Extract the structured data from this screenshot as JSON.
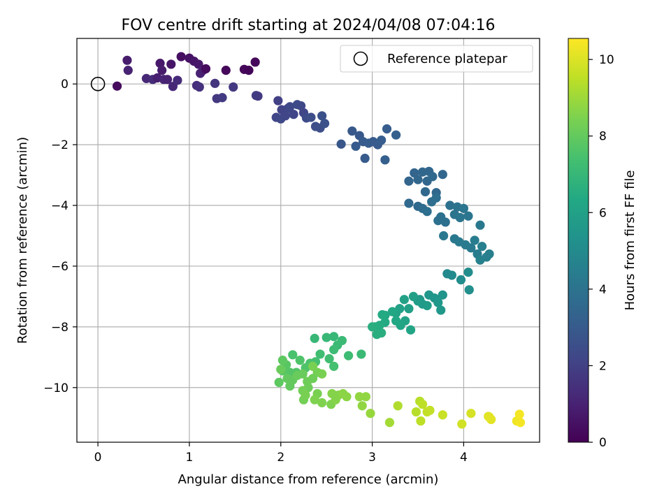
{
  "chart_data": {
    "type": "scatter",
    "title": "FOV centre drift starting at 2024/04/08 07:04:16",
    "xlabel": "Angular distance from reference (arcmin)",
    "ylabel": "Rotation from reference (arcmin)",
    "xlim": [
      -0.23,
      4.83
    ],
    "ylim": [
      -11.8,
      1.5
    ],
    "xticks": [
      0,
      1,
      2,
      3,
      4
    ],
    "yticks": [
      -10,
      -8,
      -6,
      -4,
      -2,
      0
    ],
    "grid": true,
    "legend": {
      "position": "top-right",
      "entries": [
        "Reference platepar"
      ]
    },
    "reference": {
      "x": 0,
      "y": 0
    },
    "colorbar": {
      "label": "Hours from first FF file",
      "range": [
        0,
        10.55
      ],
      "ticks": [
        0,
        2,
        4,
        6,
        8,
        10
      ],
      "colormap": "viridis"
    },
    "series": [
      {
        "points": [
          [
            0.21,
            -0.07,
            0.3
          ],
          [
            0.32,
            0.78,
            0.8
          ],
          [
            0.33,
            0.45,
            1.0
          ],
          [
            0.53,
            0.18,
            1.2
          ],
          [
            0.6,
            0.15,
            1.3
          ],
          [
            0.65,
            0.2,
            0.9
          ],
          [
            0.68,
            0.68,
            0.7
          ],
          [
            0.7,
            0.45,
            0.8
          ],
          [
            0.72,
            0.15,
            1.1
          ],
          [
            0.76,
            0.15,
            1.0
          ],
          [
            0.8,
            0.65,
            0.6
          ],
          [
            0.82,
            -0.08,
            1.2
          ],
          [
            0.87,
            0.12,
            1.3
          ],
          [
            0.91,
            0.9,
            0.4
          ],
          [
            1.0,
            0.85,
            0.5
          ],
          [
            1.05,
            0.75,
            0.6
          ],
          [
            1.1,
            0.65,
            0.7
          ],
          [
            1.12,
            0.35,
            1.0
          ],
          [
            1.15,
            0.45,
            0.9
          ],
          [
            1.08,
            -0.05,
            1.4
          ],
          [
            1.11,
            -0.1,
            1.5
          ],
          [
            1.18,
            0.5,
            0.3
          ],
          [
            1.28,
            0.02,
            1.6
          ],
          [
            1.3,
            -0.48,
            1.7
          ],
          [
            1.36,
            -0.45,
            1.8
          ],
          [
            1.4,
            0.45,
            0.2
          ],
          [
            1.48,
            -0.1,
            1.7
          ],
          [
            1.6,
            0.48,
            0.2
          ],
          [
            1.65,
            0.45,
            0.1
          ],
          [
            1.72,
            0.72,
            0.2
          ],
          [
            1.73,
            -0.38,
            1.9
          ],
          [
            1.75,
            -0.4,
            1.8
          ],
          [
            1.97,
            -0.55,
            2.0
          ],
          [
            1.95,
            -1.1,
            2.2
          ],
          [
            2.0,
            -1.15,
            2.3
          ],
          [
            2.01,
            -0.85,
            2.1
          ],
          [
            2.05,
            -1.05,
            2.2
          ],
          [
            2.08,
            -0.8,
            2.2
          ],
          [
            2.1,
            -0.75,
            2.3
          ],
          [
            2.14,
            -1.0,
            2.2
          ],
          [
            2.18,
            -0.68,
            2.4
          ],
          [
            2.22,
            -0.72,
            2.3
          ],
          [
            2.25,
            -0.95,
            2.2
          ],
          [
            2.28,
            -1.12,
            2.4
          ],
          [
            2.33,
            -1.1,
            2.5
          ],
          [
            2.38,
            -1.4,
            2.5
          ],
          [
            2.43,
            -1.45,
            2.5
          ],
          [
            2.45,
            -1.05,
            2.6
          ],
          [
            2.48,
            -1.3,
            2.6
          ],
          [
            2.66,
            -1.98,
            2.8
          ],
          [
            2.78,
            -1.55,
            2.9
          ],
          [
            2.82,
            -2.05,
            3.0
          ],
          [
            2.86,
            -1.7,
            2.9
          ],
          [
            2.9,
            -1.9,
            3.0
          ],
          [
            2.92,
            -2.45,
            3.0
          ],
          [
            2.96,
            -1.95,
            3.1
          ],
          [
            3.01,
            -1.9,
            3.0
          ],
          [
            3.06,
            -2.0,
            3.0
          ],
          [
            3.1,
            -1.85,
            3.1
          ],
          [
            3.14,
            -2.5,
            3.2
          ],
          [
            3.16,
            -1.48,
            3.1
          ],
          [
            3.26,
            -1.68,
            3.2
          ],
          [
            3.4,
            -3.2,
            3.4
          ],
          [
            3.46,
            -2.93,
            3.4
          ],
          [
            3.5,
            -3.15,
            3.5
          ],
          [
            3.55,
            -2.9,
            3.5
          ],
          [
            3.58,
            -3.55,
            3.6
          ],
          [
            3.6,
            -3.2,
            3.5
          ],
          [
            3.62,
            -2.88,
            3.5
          ],
          [
            3.66,
            -3.05,
            3.6
          ],
          [
            3.7,
            -3.58,
            3.5
          ],
          [
            3.77,
            -2.98,
            3.5
          ],
          [
            3.4,
            -3.93,
            3.6
          ],
          [
            3.5,
            -4.03,
            3.6
          ],
          [
            3.55,
            -4.1,
            3.7
          ],
          [
            3.6,
            -4.2,
            3.8
          ],
          [
            3.65,
            -3.88,
            3.8
          ],
          [
            3.7,
            -3.75,
            3.8
          ],
          [
            3.72,
            -4.5,
            3.9
          ],
          [
            3.75,
            -4.38,
            3.9
          ],
          [
            3.8,
            -4.55,
            3.9
          ],
          [
            3.85,
            -4.0,
            3.9
          ],
          [
            3.9,
            -4.3,
            4.0
          ],
          [
            3.93,
            -4.05,
            4.0
          ],
          [
            3.96,
            -4.4,
            4.1
          ],
          [
            4.0,
            -4.1,
            4.1
          ],
          [
            4.05,
            -4.35,
            4.1
          ],
          [
            3.78,
            -5.0,
            4.2
          ],
          [
            3.9,
            -5.1,
            4.2
          ],
          [
            3.95,
            -5.2,
            4.3
          ],
          [
            4.02,
            -5.3,
            4.3
          ],
          [
            4.08,
            -5.4,
            4.3
          ],
          [
            4.12,
            -5.15,
            4.4
          ],
          [
            4.15,
            -5.6,
            4.4
          ],
          [
            4.2,
            -5.35,
            4.5
          ],
          [
            4.25,
            -5.7,
            4.5
          ],
          [
            4.28,
            -5.6,
            4.5
          ],
          [
            4.18,
            -5.8,
            4.6
          ],
          [
            4.18,
            -4.65,
            4.2
          ],
          [
            3.82,
            -6.25,
            5.0
          ],
          [
            3.87,
            -6.3,
            5.0
          ],
          [
            3.97,
            -6.45,
            5.1
          ],
          [
            4.05,
            -6.2,
            5.1
          ],
          [
            4.06,
            -6.78,
            5.2
          ],
          [
            3.62,
            -6.95,
            5.5
          ],
          [
            3.68,
            -7.05,
            5.5
          ],
          [
            3.72,
            -7.2,
            5.6
          ],
          [
            3.75,
            -7.45,
            5.6
          ],
          [
            3.52,
            -7.1,
            5.6
          ],
          [
            3.55,
            -7.25,
            5.7
          ],
          [
            3.5,
            -7.15,
            5.8
          ],
          [
            3.45,
            -7.0,
            5.9
          ],
          [
            3.4,
            -7.4,
            5.9
          ],
          [
            3.35,
            -7.1,
            6.0
          ],
          [
            3.3,
            -7.4,
            6.0
          ],
          [
            3.26,
            -7.55,
            6.1
          ],
          [
            3.36,
            -7.8,
            6.1
          ],
          [
            3.42,
            -8.1,
            6.2
          ],
          [
            3.31,
            -7.95,
            6.2
          ],
          [
            3.26,
            -7.8,
            6.3
          ],
          [
            3.22,
            -7.5,
            6.3
          ],
          [
            3.14,
            -7.62,
            6.3
          ],
          [
            3.11,
            -7.6,
            6.4
          ],
          [
            3.14,
            -7.85,
            6.4
          ],
          [
            3.08,
            -7.95,
            6.5
          ],
          [
            3.03,
            -8.0,
            6.5
          ],
          [
            3.05,
            -8.25,
            6.6
          ],
          [
            3.1,
            -8.2,
            6.6
          ],
          [
            3.0,
            -8.0,
            6.6
          ],
          [
            3.77,
            -6.95,
            5.4
          ],
          [
            3.6,
            -7.3,
            5.8
          ],
          [
            2.58,
            -8.32,
            7.0
          ],
          [
            2.5,
            -8.35,
            7.0
          ],
          [
            2.62,
            -8.6,
            7.1
          ],
          [
            2.67,
            -8.45,
            7.1
          ],
          [
            2.74,
            -8.95,
            7.2
          ],
          [
            2.58,
            -8.75,
            7.2
          ],
          [
            2.53,
            -9.05,
            7.3
          ],
          [
            2.43,
            -8.9,
            7.3
          ],
          [
            2.38,
            -9.15,
            7.4
          ],
          [
            2.32,
            -9.2,
            7.5
          ],
          [
            2.27,
            -9.35,
            7.6
          ],
          [
            2.21,
            -9.1,
            7.6
          ],
          [
            2.17,
            -9.5,
            7.7
          ],
          [
            2.1,
            -9.5,
            7.7
          ],
          [
            2.06,
            -9.25,
            7.8
          ],
          [
            2.02,
            -9.1,
            7.9
          ],
          [
            2.02,
            -9.45,
            7.8
          ],
          [
            2.07,
            -9.7,
            8.0
          ],
          [
            2.13,
            -9.75,
            8.0
          ],
          [
            2.18,
            -9.6,
            8.1
          ],
          [
            2.24,
            -9.55,
            8.1
          ],
          [
            2.29,
            -9.8,
            8.2
          ],
          [
            2.35,
            -9.7,
            8.2
          ],
          [
            2.3,
            -10.0,
            8.2
          ],
          [
            2.24,
            -10.1,
            8.3
          ],
          [
            2.4,
            -9.5,
            8.3
          ],
          [
            2.45,
            -9.55,
            8.4
          ],
          [
            2.35,
            -9.3,
            8.4
          ],
          [
            2.58,
            -9.3,
            7.4
          ],
          [
            2.88,
            -8.9,
            7.1
          ],
          [
            2.37,
            -8.38,
            7.0
          ],
          [
            2.13,
            -8.92,
            7.5
          ],
          [
            1.98,
            -9.83,
            7.9
          ],
          [
            2.1,
            -9.95,
            8.0
          ],
          [
            2.0,
            -9.4,
            8.1
          ],
          [
            2.25,
            -10.4,
            8.3
          ],
          [
            2.27,
            -10.25,
            8.4
          ],
          [
            2.4,
            -10.2,
            8.4
          ],
          [
            2.37,
            -10.4,
            8.5
          ],
          [
            2.45,
            -10.5,
            8.5
          ],
          [
            2.55,
            -10.55,
            8.5
          ],
          [
            2.6,
            -10.4,
            8.6
          ],
          [
            2.63,
            -10.25,
            8.6
          ],
          [
            2.68,
            -10.2,
            8.7
          ],
          [
            2.72,
            -10.3,
            8.7
          ],
          [
            2.86,
            -10.3,
            8.8
          ],
          [
            2.93,
            -10.3,
            8.8
          ],
          [
            2.89,
            -10.6,
            8.8
          ],
          [
            2.98,
            -10.85,
            8.9
          ],
          [
            2.56,
            -10.2,
            8.6
          ],
          [
            3.19,
            -11.15,
            9.1
          ],
          [
            3.28,
            -10.6,
            9.3
          ],
          [
            3.48,
            -10.8,
            9.4
          ],
          [
            3.52,
            -10.45,
            9.4
          ],
          [
            3.55,
            -10.55,
            9.5
          ],
          [
            3.6,
            -10.8,
            9.6
          ],
          [
            3.63,
            -10.75,
            9.6
          ],
          [
            3.53,
            -11.1,
            9.5
          ],
          [
            3.77,
            -10.9,
            9.7
          ],
          [
            3.98,
            -11.2,
            9.8
          ],
          [
            4.08,
            -10.85,
            9.9
          ],
          [
            4.27,
            -10.95,
            10.0
          ],
          [
            4.3,
            -11.05,
            10.1
          ],
          [
            4.58,
            -11.1,
            10.3
          ],
          [
            4.62,
            -11.15,
            10.4
          ],
          [
            4.61,
            -10.88,
            10.4
          ],
          [
            4.28,
            -10.97,
            10.1
          ]
        ]
      }
    ]
  }
}
